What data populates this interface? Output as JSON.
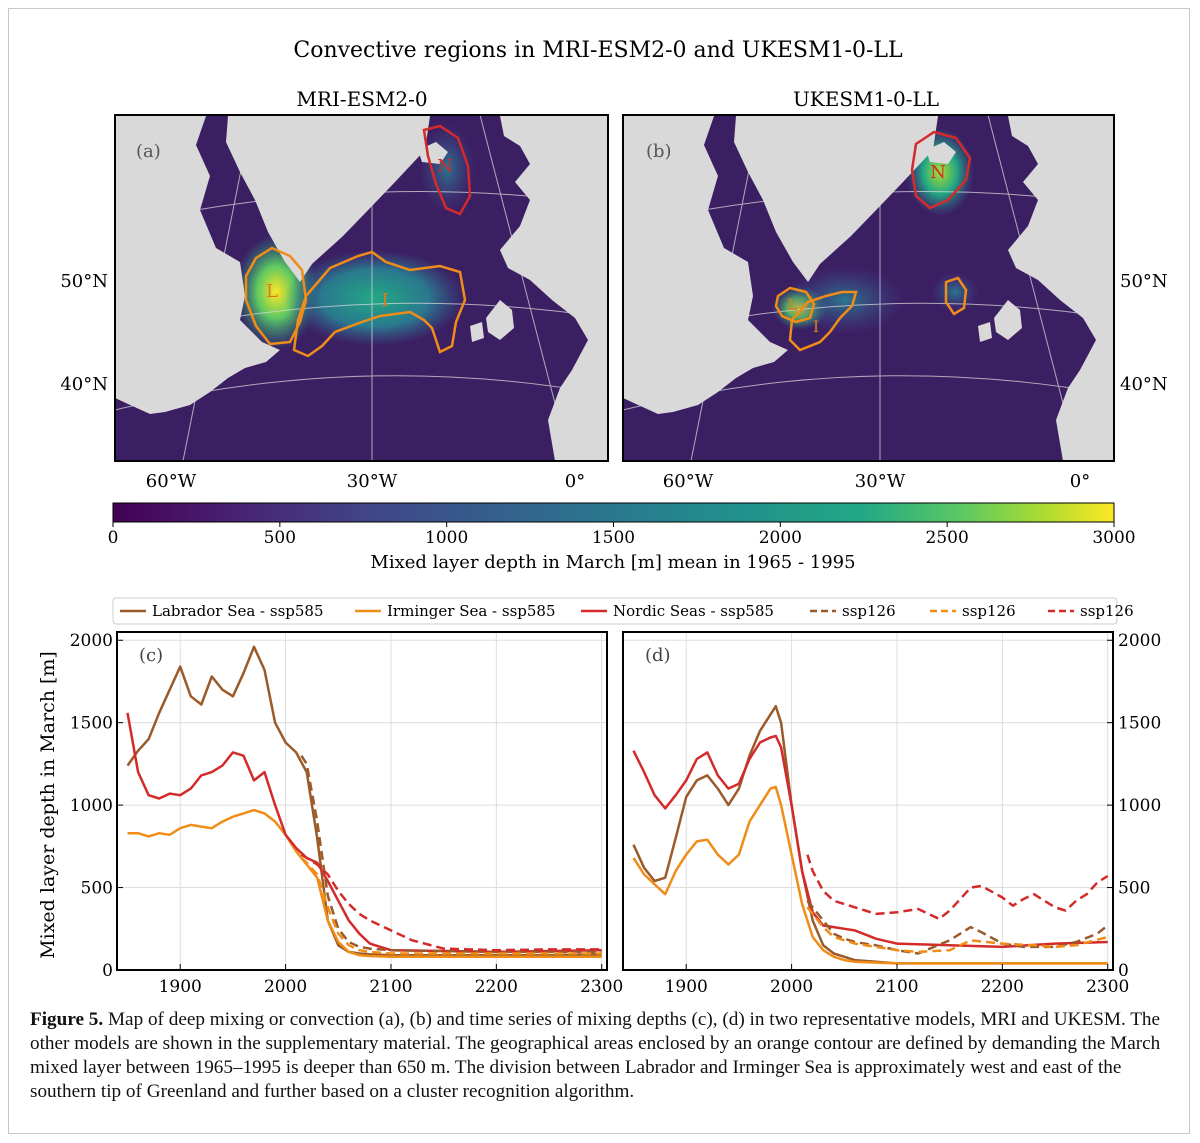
{
  "figure": {
    "suptitle": "Convective regions in MRI-ESM2-0 and UKESM1-0-LL",
    "caption_label": "Figure 5.",
    "caption_text": " Map of deep mixing or convection (a), (b) and time series of mixing depths (c), (d) in two representative models, MRI and UKESM. The other models are shown in the supplementary material. The geographical areas enclosed by an orange contour are defined by demanding the March mixed layer between 1965–1995 is deeper than 650 m. The division between Labrador and Irminger Sea is approximately west and east of the southern tip of Greenland and further based on a cluster recognition algorithm."
  },
  "colors": {
    "labrador": "#9a5a2a",
    "irminger": "#f08c18",
    "nordic": "#d42a2a",
    "ocean": "#3b1f63",
    "land": "#d9d9d9",
    "grid": "#d9d9d9"
  },
  "maps": [
    {
      "panel_label": "(a)",
      "title": "MRI-ESM2-0",
      "lat_labels": [
        "50°N",
        "40°N"
      ],
      "lon_labels": [
        "60°W",
        "30°W",
        "0°"
      ],
      "region_labels": [
        "L",
        "I",
        "N"
      ]
    },
    {
      "panel_label": "(b)",
      "title": "UKESM1-0-LL",
      "lat_labels": [
        "50°N",
        "40°N"
      ],
      "lon_labels": [
        "60°W",
        "30°W",
        "0°"
      ],
      "region_labels": [
        "L",
        "I",
        "N"
      ]
    }
  ],
  "colorbar": {
    "label": "Mixed layer depth in March [m] mean in 1965 - 1995",
    "min": 0,
    "max": 3000,
    "ticks": [
      0,
      500,
      1000,
      1500,
      2000,
      2500,
      3000
    ]
  },
  "legend": [
    {
      "label": "Labrador Sea - ssp585",
      "color": "#9a5a2a",
      "dashed": false
    },
    {
      "label": "Irminger Sea - ssp585",
      "color": "#f08c18",
      "dashed": false
    },
    {
      "label": "Nordic Seas - ssp585",
      "color": "#d42a2a",
      "dashed": false
    },
    {
      "label": "ssp126",
      "color": "#9a5a2a",
      "dashed": true
    },
    {
      "label": "ssp126",
      "color": "#f08c18",
      "dashed": true
    },
    {
      "label": "ssp126",
      "color": "#d42a2a",
      "dashed": true
    }
  ],
  "chart_data": [
    {
      "type": "line",
      "panel_label": "(c)",
      "ylabel": "Mixed layer depth in March [m]",
      "xlim": [
        1840,
        2305
      ],
      "ylim": [
        0,
        2050
      ],
      "xticks": [
        1900,
        2000,
        2100,
        2200,
        2300
      ],
      "yticks": [
        0,
        500,
        1000,
        1500,
        2000
      ],
      "grid": true,
      "series": [
        {
          "name": "Labrador Sea - ssp585",
          "scenario": "ssp585",
          "color": "#9a5a2a",
          "dashed": false,
          "x": [
            1850,
            1860,
            1870,
            1880,
            1890,
            1900,
            1910,
            1920,
            1930,
            1940,
            1950,
            1960,
            1970,
            1980,
            1990,
            2000,
            2010,
            2020,
            2030,
            2040,
            2050,
            2060,
            2070,
            2080,
            2100,
            2150,
            2200,
            2250,
            2300
          ],
          "y": [
            1240,
            1330,
            1400,
            1560,
            1700,
            1840,
            1660,
            1610,
            1780,
            1700,
            1660,
            1800,
            1960,
            1820,
            1500,
            1380,
            1320,
            1200,
            800,
            300,
            150,
            110,
            100,
            95,
            90,
            90,
            90,
            90,
            95
          ]
        },
        {
          "name": "Irminger Sea - ssp585",
          "scenario": "ssp585",
          "color": "#f08c18",
          "dashed": false,
          "x": [
            1850,
            1860,
            1870,
            1880,
            1890,
            1900,
            1910,
            1920,
            1930,
            1940,
            1950,
            1960,
            1970,
            1980,
            1990,
            2000,
            2010,
            2020,
            2030,
            2040,
            2050,
            2060,
            2070,
            2080,
            2100,
            2150,
            2200,
            2250,
            2300
          ],
          "y": [
            830,
            830,
            810,
            830,
            820,
            860,
            880,
            870,
            860,
            900,
            930,
            950,
            970,
            950,
            900,
            820,
            720,
            640,
            560,
            300,
            170,
            110,
            90,
            85,
            80,
            80,
            80,
            80,
            80
          ]
        },
        {
          "name": "Nordic Seas - ssp585",
          "scenario": "ssp585",
          "color": "#d42a2a",
          "dashed": false,
          "x": [
            1850,
            1860,
            1870,
            1880,
            1890,
            1900,
            1910,
            1920,
            1930,
            1940,
            1950,
            1960,
            1970,
            1980,
            1990,
            2000,
            2010,
            2020,
            2030,
            2040,
            2050,
            2060,
            2070,
            2080,
            2100,
            2150,
            2200,
            2250,
            2300
          ],
          "y": [
            1560,
            1200,
            1060,
            1040,
            1070,
            1060,
            1100,
            1180,
            1200,
            1240,
            1320,
            1300,
            1150,
            1200,
            1000,
            820,
            740,
            680,
            650,
            540,
            420,
            300,
            220,
            160,
            120,
            115,
            110,
            115,
            120
          ]
        },
        {
          "name": "ssp126",
          "scenario": "ssp126",
          "color": "#9a5a2a",
          "dashed": true,
          "x": [
            2015,
            2020,
            2030,
            2040,
            2050,
            2060,
            2070,
            2080,
            2100,
            2150,
            2200,
            2250,
            2300
          ],
          "y": [
            1300,
            1250,
            900,
            450,
            250,
            170,
            140,
            130,
            120,
            115,
            110,
            110,
            110
          ]
        },
        {
          "name": "ssp126",
          "scenario": "ssp126",
          "color": "#f08c18",
          "dashed": true,
          "x": [
            2015,
            2020,
            2030,
            2040,
            2050,
            2060,
            2070,
            2080,
            2100,
            2150,
            2200,
            2250,
            2300
          ],
          "y": [
            680,
            650,
            580,
            380,
            220,
            150,
            120,
            110,
            100,
            100,
            100,
            100,
            100
          ]
        },
        {
          "name": "ssp126",
          "scenario": "ssp126",
          "color": "#d42a2a",
          "dashed": true,
          "x": [
            2015,
            2020,
            2030,
            2040,
            2050,
            2060,
            2070,
            2080,
            2100,
            2120,
            2150,
            2200,
            2250,
            2300
          ],
          "y": [
            700,
            680,
            640,
            580,
            480,
            400,
            340,
            300,
            240,
            180,
            130,
            120,
            125,
            125
          ]
        }
      ]
    },
    {
      "type": "line",
      "panel_label": "(d)",
      "ylabel": "",
      "xlim": [
        1840,
        2305
      ],
      "ylim": [
        0,
        2050
      ],
      "xticks": [
        1900,
        2000,
        2100,
        2200,
        2300
      ],
      "yticks": [
        0,
        500,
        1000,
        1500,
        2000
      ],
      "grid": true,
      "series": [
        {
          "name": "Labrador Sea - ssp585",
          "scenario": "ssp585",
          "color": "#9a5a2a",
          "dashed": false,
          "x": [
            1850,
            1860,
            1870,
            1880,
            1890,
            1900,
            1910,
            1920,
            1930,
            1940,
            1950,
            1960,
            1970,
            1980,
            1985,
            1990,
            2000,
            2010,
            2020,
            2030,
            2040,
            2050,
            2060,
            2080,
            2100,
            2150,
            2200,
            2250,
            2300
          ],
          "y": [
            760,
            620,
            540,
            560,
            800,
            1050,
            1150,
            1180,
            1100,
            1000,
            1100,
            1300,
            1450,
            1550,
            1600,
            1500,
            1000,
            600,
            300,
            150,
            100,
            80,
            60,
            50,
            40,
            40,
            40,
            40,
            40
          ]
        },
        {
          "name": "Irminger Sea - ssp585",
          "scenario": "ssp585",
          "color": "#f08c18",
          "dashed": false,
          "x": [
            1850,
            1860,
            1870,
            1880,
            1890,
            1900,
            1910,
            1920,
            1930,
            1940,
            1950,
            1960,
            1970,
            1980,
            1985,
            1990,
            2000,
            2010,
            2020,
            2030,
            2040,
            2050,
            2060,
            2080,
            2100,
            2150,
            2200,
            2250,
            2300
          ],
          "y": [
            680,
            580,
            520,
            460,
            600,
            700,
            780,
            790,
            700,
            640,
            700,
            900,
            1000,
            1100,
            1110,
            1000,
            700,
            400,
            200,
            120,
            80,
            60,
            50,
            45,
            40,
            40,
            40,
            40,
            40
          ]
        },
        {
          "name": "Nordic Seas - ssp585",
          "scenario": "ssp585",
          "color": "#d42a2a",
          "dashed": false,
          "x": [
            1850,
            1860,
            1870,
            1880,
            1890,
            1900,
            1910,
            1920,
            1930,
            1940,
            1950,
            1960,
            1970,
            1980,
            1985,
            1990,
            2000,
            2010,
            2020,
            2030,
            2040,
            2050,
            2060,
            2080,
            2100,
            2150,
            2200,
            2250,
            2300
          ],
          "y": [
            1330,
            1200,
            1060,
            980,
            1060,
            1150,
            1280,
            1320,
            1180,
            1100,
            1130,
            1280,
            1380,
            1410,
            1420,
            1350,
            1000,
            600,
            350,
            270,
            260,
            250,
            240,
            190,
            160,
            150,
            140,
            160,
            170
          ]
        },
        {
          "name": "ssp126",
          "scenario": "ssp126",
          "color": "#9a5a2a",
          "dashed": true,
          "x": [
            2015,
            2020,
            2030,
            2040,
            2050,
            2060,
            2080,
            2100,
            2120,
            2150,
            2170,
            2180,
            2200,
            2220,
            2250,
            2270,
            2290,
            2300
          ],
          "y": [
            420,
            380,
            300,
            220,
            190,
            170,
            150,
            120,
            100,
            180,
            260,
            230,
            160,
            140,
            140,
            170,
            220,
            270
          ]
        },
        {
          "name": "ssp126",
          "scenario": "ssp126",
          "color": "#f08c18",
          "dashed": true,
          "x": [
            2015,
            2020,
            2030,
            2040,
            2050,
            2060,
            2080,
            2100,
            2120,
            2150,
            2170,
            2200,
            2230,
            2250,
            2270,
            2300
          ],
          "y": [
            380,
            340,
            260,
            200,
            180,
            160,
            140,
            120,
            110,
            120,
            180,
            160,
            150,
            140,
            150,
            200
          ]
        },
        {
          "name": "ssp126",
          "scenario": "ssp126",
          "color": "#d42a2a",
          "dashed": true,
          "x": [
            2015,
            2020,
            2030,
            2040,
            2050,
            2060,
            2070,
            2080,
            2100,
            2120,
            2130,
            2140,
            2150,
            2160,
            2170,
            2180,
            2200,
            2210,
            2220,
            2230,
            2240,
            2250,
            2260,
            2270,
            2280,
            2290,
            2300
          ],
          "y": [
            700,
            600,
            480,
            420,
            400,
            380,
            360,
            340,
            350,
            370,
            340,
            310,
            360,
            430,
            500,
            510,
            440,
            390,
            430,
            460,
            420,
            380,
            360,
            420,
            460,
            530,
            570
          ]
        }
      ]
    }
  ]
}
